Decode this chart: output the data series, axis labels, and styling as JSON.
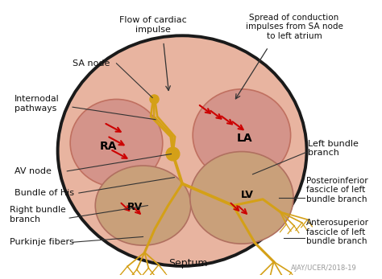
{
  "background_color": "#ffffff",
  "heart_outer_color": "#e8b4a0",
  "heart_border_color": "#1a1a1a",
  "conduction_color": "#d4a017",
  "arrow_color": "#cc0000",
  "title_top_left": "Flow of cardiac\nimpulse",
  "title_top_right": "Spread of conduction\nimpulses from SA node\nto left atrium",
  "labels": {
    "SA_node": "SA node",
    "Internodal": "Internodal\npathways",
    "AV_node": "AV node",
    "Bundle_His": "Bundle of His",
    "Right_bundle": "Right bundle\nbranch",
    "Purkinje": "Purkinje fibers",
    "Left_bundle": "Left bundle\nbranch",
    "Posteroinferior": "Posteroinferior\nfascicle of left\nbundle branch",
    "Anterosuperior": "Anterosuperior\nfascicle of left\nbundle branch",
    "Septum": "Septum",
    "RA": "RA",
    "LA": "LA",
    "RV": "RV",
    "LV": "LV"
  },
  "watermark": "AJAY/UCER/2018-19"
}
